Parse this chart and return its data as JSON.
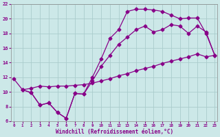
{
  "background_color": "#cce8e8",
  "grid_color": "#aacccc",
  "line_color": "#880088",
  "marker": "D",
  "marker_size": 2.5,
  "xlim": [
    -0.3,
    23.3
  ],
  "ylim": [
    6,
    22
  ],
  "xticks": [
    0,
    1,
    2,
    3,
    4,
    5,
    6,
    7,
    8,
    9,
    10,
    11,
    12,
    13,
    14,
    15,
    16,
    17,
    18,
    19,
    20,
    21,
    22,
    23
  ],
  "yticks": [
    6,
    8,
    10,
    12,
    14,
    16,
    18,
    20,
    22
  ],
  "xlabel": "Windchill (Refroidissement éolien,°C)",
  "line1_x": [
    0,
    1,
    2,
    3,
    4,
    5,
    6,
    7,
    8,
    9,
    10,
    11,
    12,
    13,
    14,
    15,
    16,
    17,
    18,
    19,
    20,
    21,
    22,
    23
  ],
  "line1_y": [
    11.8,
    10.3,
    9.9,
    8.2,
    8.5,
    7.2,
    6.4,
    9.8,
    9.7,
    12.0,
    14.5,
    17.3,
    18.5,
    21.0,
    21.3,
    21.3,
    21.2,
    21.0,
    20.5,
    20.0,
    20.1,
    20.1,
    18.0,
    15.0
  ],
  "line2_x": [
    1,
    2,
    3,
    4,
    5,
    6,
    7,
    8,
    9,
    10,
    11,
    12,
    13,
    14,
    15,
    16,
    17,
    18,
    19,
    20,
    21,
    22,
    23
  ],
  "line2_y": [
    10.3,
    10.5,
    10.8,
    10.7,
    10.8,
    10.8,
    10.9,
    11.0,
    11.2,
    11.5,
    11.8,
    12.2,
    12.5,
    12.9,
    13.2,
    13.5,
    13.9,
    14.2,
    14.5,
    14.8,
    15.2,
    14.8,
    15.0
  ],
  "line3_x": [
    1,
    2,
    3,
    4,
    5,
    6,
    7,
    8,
    9,
    10,
    11,
    12,
    13,
    14,
    15,
    16,
    17,
    18,
    19,
    20,
    21,
    22,
    23
  ],
  "line3_y": [
    10.3,
    9.9,
    8.2,
    8.5,
    7.2,
    6.4,
    9.8,
    9.7,
    11.5,
    13.5,
    15.0,
    16.5,
    17.5,
    18.5,
    19.0,
    18.2,
    18.5,
    19.2,
    19.0,
    18.0,
    19.0,
    18.2,
    15.0
  ]
}
